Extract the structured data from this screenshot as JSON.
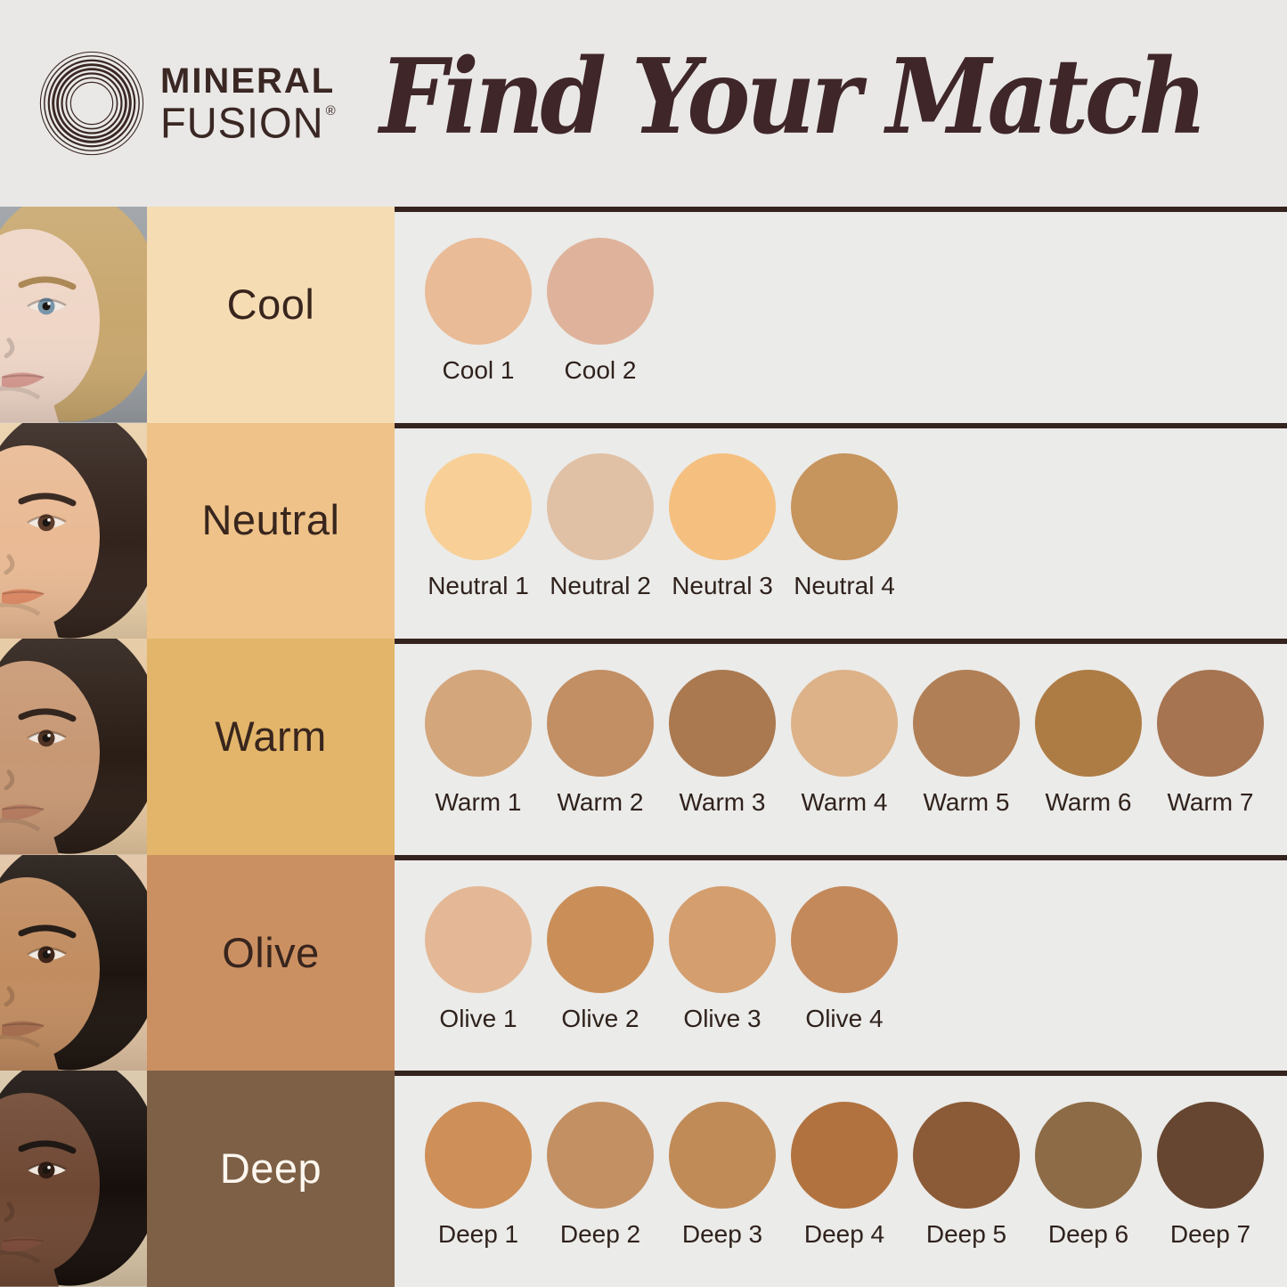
{
  "brand": {
    "name_line1": "MINERAL",
    "name_line2": "FUSION",
    "registered_mark": "®",
    "logo_color": "#3a2723"
  },
  "title": {
    "text": "Find Your Match",
    "color": "#3f2629"
  },
  "colors": {
    "page_bg": "#e9e8e6",
    "panel_bg": "#ebebe9",
    "separator": "#35231f",
    "category_text": "#38251d",
    "swatch_label_text": "#2f221c"
  },
  "rows": [
    {
      "id": "cool",
      "label": "Cool",
      "label_bg": "#f6dcb3",
      "label_text_color": "#38251d",
      "face": {
        "bg": "#999ea3",
        "skin": "#efd6c7",
        "hair": "#c8a76e",
        "eye": "#7794a8",
        "lip": "#d89a90",
        "brow": "#a8844f"
      },
      "swatches": [
        {
          "name": "Cool 1",
          "color": "#e9bb97"
        },
        {
          "name": "Cool 2",
          "color": "#dfb39b"
        }
      ]
    },
    {
      "id": "neutral",
      "label": "Neutral",
      "label_bg": "#eec289",
      "label_text_color": "#38251d",
      "face": {
        "bg": "#ead0a9",
        "skin": "#e9ba94",
        "hair": "#32231c",
        "eye": "#5b3a28",
        "lip": "#e08a64",
        "brow": "#32231c"
      },
      "swatches": [
        {
          "name": "Neutral 1",
          "color": "#f8cf96"
        },
        {
          "name": "Neutral 2",
          "color": "#e0c1a6"
        },
        {
          "name": "Neutral 3",
          "color": "#f5c07f"
        },
        {
          "name": "Neutral 4",
          "color": "#c6945d"
        }
      ]
    },
    {
      "id": "warm",
      "label": "Warm",
      "label_bg": "#e2b56a",
      "label_text_color": "#38251d",
      "face": {
        "bg": "#e5c79f",
        "skin": "#c89874",
        "hair": "#2a1d16",
        "eye": "#4f3222",
        "lip": "#b97c60",
        "brow": "#2a1d16"
      },
      "swatches": [
        {
          "name": "Warm 1",
          "color": "#d3a67c"
        },
        {
          "name": "Warm 2",
          "color": "#c28e63"
        },
        {
          "name": "Warm 3",
          "color": "#aa7950"
        },
        {
          "name": "Warm 4",
          "color": "#ddb288"
        },
        {
          "name": "Warm 5",
          "color": "#b17f56"
        },
        {
          "name": "Warm 6",
          "color": "#ad7c45"
        },
        {
          "name": "Warm 7",
          "color": "#a67451"
        }
      ]
    },
    {
      "id": "olive",
      "label": "Olive",
      "label_bg": "#cb9062",
      "label_text_color": "#38251d",
      "face": {
        "bg": "#e0c2a2",
        "skin": "#c18c60",
        "hair": "#1e1510",
        "eye": "#3e2417",
        "lip": "#a96e4e",
        "brow": "#1e1510"
      },
      "swatches": [
        {
          "name": "Olive 1",
          "color": "#e4b896"
        },
        {
          "name": "Olive 2",
          "color": "#ca8f59"
        },
        {
          "name": "Olive 3",
          "color": "#d49e6f"
        },
        {
          "name": "Olive 4",
          "color": "#c4895b"
        }
      ]
    },
    {
      "id": "deep",
      "label": "Deep",
      "label_bg": "#7e6046",
      "label_text_color": "#fcf7ef",
      "face": {
        "bg": "#d8c4a6",
        "skin": "#6f4833",
        "hair": "#170f0b",
        "eye": "#2e1a10",
        "lip": "#7d4a38",
        "brow": "#170f0b"
      },
      "swatches": [
        {
          "name": "Deep 1",
          "color": "#ce8f58"
        },
        {
          "name": "Deep 2",
          "color": "#c39064"
        },
        {
          "name": "Deep 3",
          "color": "#c18b58"
        },
        {
          "name": "Deep 4",
          "color": "#b1723f"
        },
        {
          "name": "Deep 5",
          "color": "#8b5a36"
        },
        {
          "name": "Deep 6",
          "color": "#8d6b46"
        },
        {
          "name": "Deep 7",
          "color": "#664630"
        }
      ]
    }
  ]
}
